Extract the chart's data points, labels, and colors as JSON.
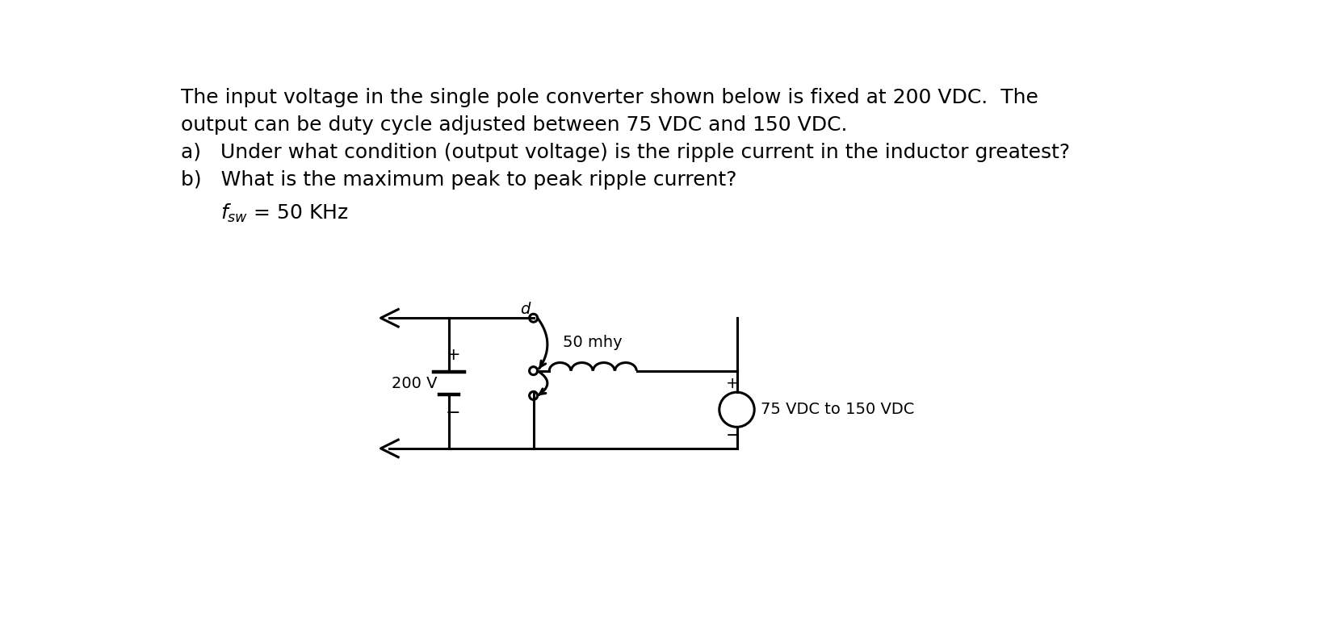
{
  "title_lines": [
    "The input voltage in the single pole converter shown below is fixed at 200 VDC.  The",
    "output can be duty cycle adjusted between 75 VDC and 150 VDC.",
    "a)   Under what condition (output voltage) is the ripple current in the inductor greatest?",
    "b)   What is the maximum peak to peak ripple current?"
  ],
  "fsw_line": "= 50 KHz",
  "background_color": "#ffffff",
  "text_color": "#000000",
  "line_color": "#000000",
  "font_size_main": 18,
  "font_size_circuit": 14,
  "circuit": {
    "voltage_source_label": "200 V",
    "voltage_source_plus": "+",
    "voltage_source_minus": "−",
    "switch_label": "d",
    "inductor_label": "50 mhy",
    "load_label": "75 VDC to 150 VDC",
    "load_plus": "+",
    "load_minus": "−"
  }
}
